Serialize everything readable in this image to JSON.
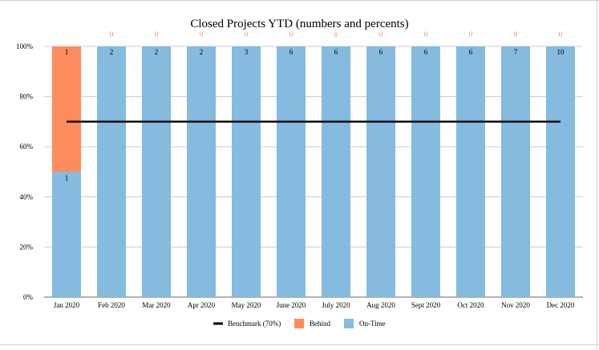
{
  "chart_data": {
    "type": "bar",
    "stacked": true,
    "normalized_percent": true,
    "title": "Closed Projects  YTD (numbers and percents)",
    "xlabel": "",
    "ylabel": "",
    "ylim": [
      0,
      100
    ],
    "yticks": [
      "0%",
      "20%",
      "40%",
      "60%",
      "80%",
      "100%"
    ],
    "ytick_values": [
      0,
      20,
      40,
      60,
      80,
      100
    ],
    "categories": [
      "Jan 2020",
      "Feb 2020",
      "Mar 2020",
      "Apr 2020",
      "May 2020",
      "June 2020",
      "July 2020",
      "Aug 2020",
      "Sept 2020",
      "Oct 2020",
      "Nov 2020",
      "Dec 2020"
    ],
    "series": [
      {
        "name": "On-Time",
        "color": "#85bbdf",
        "values": [
          1,
          2,
          2,
          2,
          3,
          6,
          6,
          6,
          6,
          6,
          7,
          10
        ]
      },
      {
        "name": "Behind",
        "color": "#fd8c5e",
        "values": [
          1,
          0,
          0,
          0,
          0,
          0,
          0,
          0,
          0,
          0,
          0,
          0
        ]
      }
    ],
    "benchmark": {
      "name": "Benchmark (70%)",
      "value": 70,
      "color": "#000000"
    },
    "legend_order": [
      "Benchmark (70%)",
      "Behind",
      "On-Time"
    ],
    "legend_position": "bottom",
    "grid": true,
    "label_colors": {
      "on_time": "#000000",
      "behind_top": "#fd8c5e"
    }
  }
}
